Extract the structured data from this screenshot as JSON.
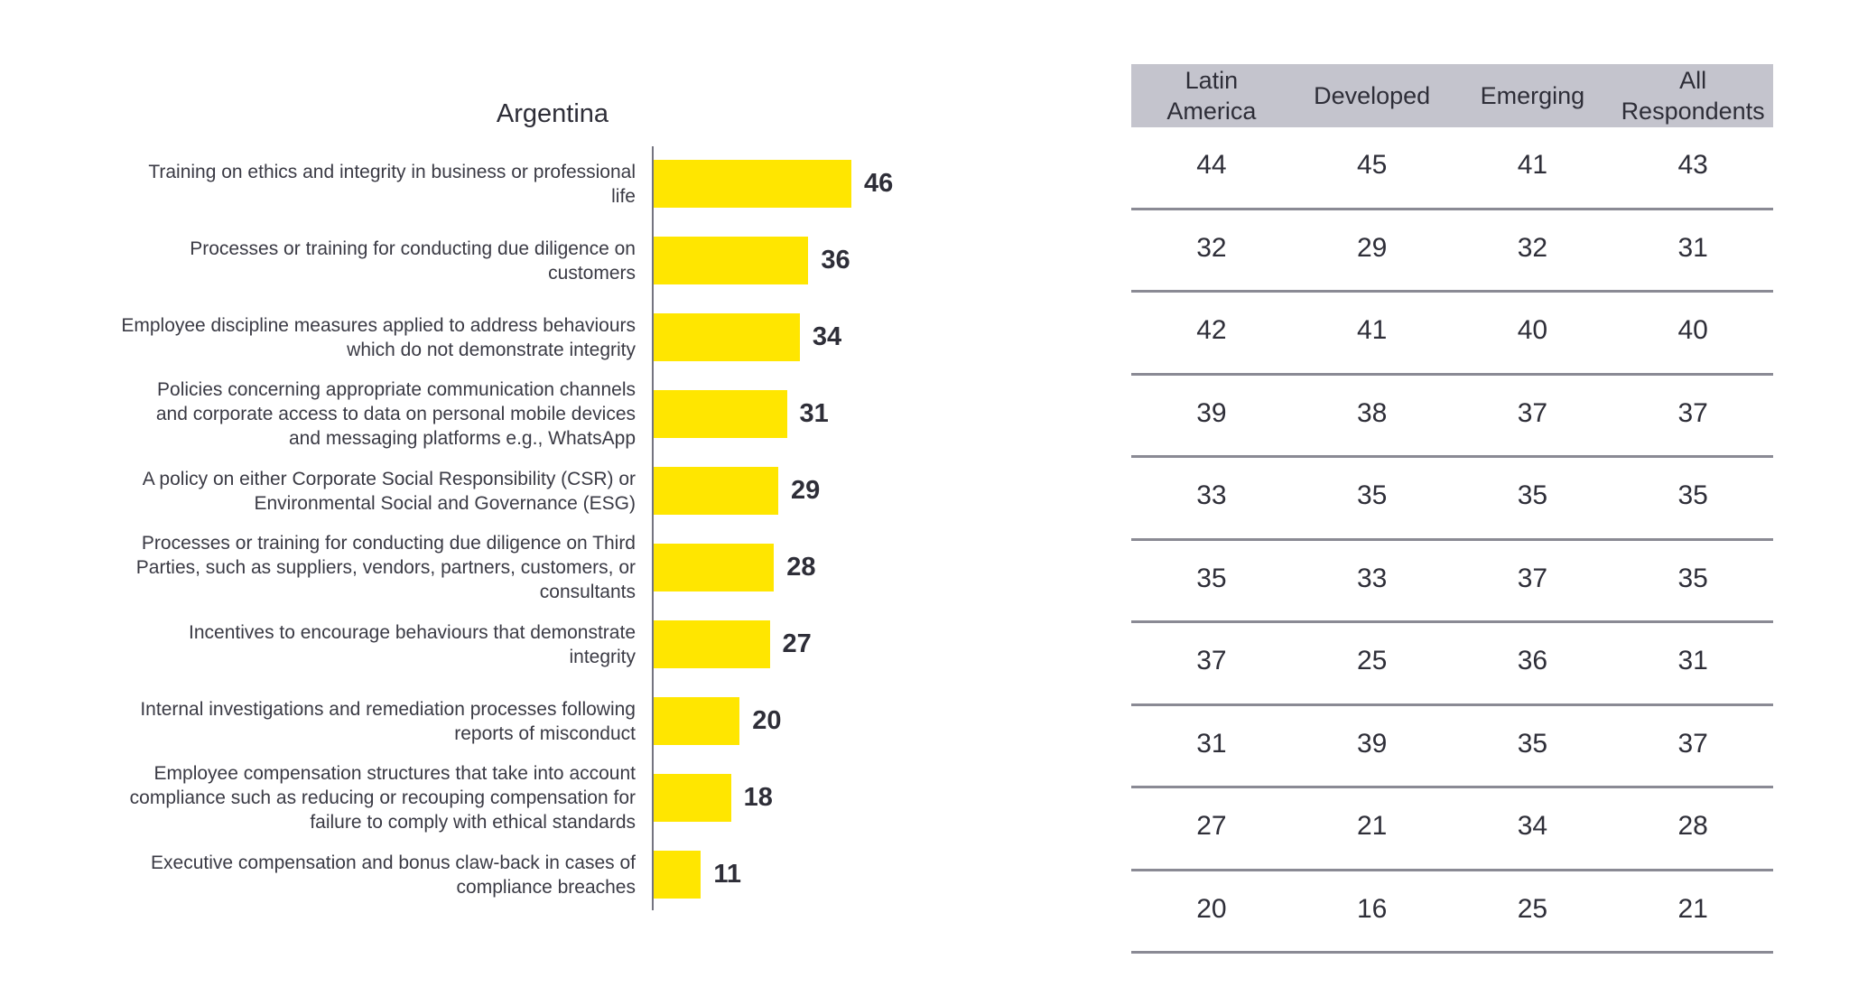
{
  "chart_data": {
    "type": "bar",
    "orientation": "horizontal",
    "title": "Argentina",
    "xlabel": "",
    "ylabel": "",
    "xlim": [
      0,
      46
    ],
    "grid": false,
    "bar_color": "#ffe600",
    "categories": [
      "Training on ethics and integrity in business or professional life",
      "Processes or training for conducting due diligence on customers",
      "Employee discipline measures applied to address behaviours which do not demonstrate integrity",
      "Policies concerning appropriate communication channels and corporate access to data on personal mobile devices and messaging platforms e.g., WhatsApp",
      "A policy on either Corporate Social Responsibility (CSR) or Environmental Social and Governance (ESG)",
      "Processes or training for conducting due diligence on Third Parties, such as suppliers, vendors, partners, customers, or consultants",
      "Incentives to encourage behaviours  that demonstrate integrity",
      "Internal investigations and remediation processes following reports of misconduct",
      "Employee compensation structures that take into account compliance such as reducing or recouping compensation for failure to comply with ethical standards",
      "Executive compensation and bonus claw-back in cases of compliance breaches"
    ],
    "label_lines": [
      [
        "Training on ethics and integrity in business or professional",
        "life"
      ],
      [
        "Processes or training for conducting due diligence on",
        "customers"
      ],
      [
        "Employee discipline measures applied to address behaviours",
        "which do not demonstrate integrity"
      ],
      [
        "Policies concerning appropriate communication channels",
        "and corporate access to data on personal mobile devices",
        "and messaging platforms e.g., WhatsApp"
      ],
      [
        "A policy on either Corporate Social Responsibility (CSR) or",
        "Environmental Social and Governance (ESG)"
      ],
      [
        "Processes or training for conducting due diligence on Third",
        "Parties, such as suppliers, vendors, partners, customers, or",
        "consultants"
      ],
      [
        "Incentives to encourage behaviours  that demonstrate",
        "integrity"
      ],
      [
        "Internal investigations and remediation processes following",
        "reports of misconduct"
      ],
      [
        "Employee compensation structures that take into account",
        "compliance such as reducing or recouping compensation for",
        "failure to comply with ethical standards"
      ],
      [
        "Executive compensation and bonus claw-back in cases of",
        "compliance breaches"
      ]
    ],
    "values": [
      46,
      36,
      34,
      31,
      29,
      28,
      27,
      20,
      18,
      11
    ],
    "table": {
      "columns": [
        [
          "Latin",
          "America"
        ],
        [
          "Developed"
        ],
        [
          "Emerging"
        ],
        [
          "All",
          "Respondents"
        ]
      ],
      "column_names": [
        "Latin America",
        "Developed",
        "Emerging",
        "All Respondents"
      ],
      "rows": [
        [
          44,
          45,
          41,
          43
        ],
        [
          32,
          29,
          32,
          31
        ],
        [
          42,
          41,
          40,
          40
        ],
        [
          39,
          38,
          37,
          37
        ],
        [
          33,
          35,
          35,
          35
        ],
        [
          35,
          33,
          37,
          35
        ],
        [
          37,
          25,
          36,
          31
        ],
        [
          31,
          39,
          35,
          37
        ],
        [
          27,
          21,
          34,
          28
        ],
        [
          20,
          16,
          25,
          21
        ]
      ],
      "header_color": "#c4c4cd"
    }
  }
}
